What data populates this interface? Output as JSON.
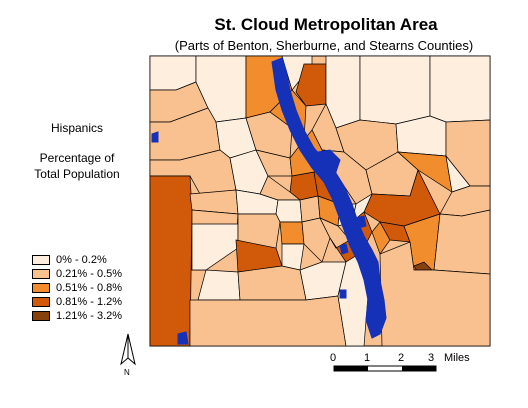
{
  "header": {
    "title": "St. Cloud Metropolitan Area",
    "subtitle": "(Parts of Benton, Sherburne, and Stearns Counties)"
  },
  "legend": {
    "subject": "Hispanics",
    "measure_line1": "Percentage of",
    "measure_line2": "Total Population",
    "classes": [
      {
        "label": "0% - 0.2%",
        "color": "#fdeede"
      },
      {
        "label": "0.21% - 0.5%",
        "color": "#f9c18f"
      },
      {
        "label": "0.51% - 0.8%",
        "color": "#f28d2d"
      },
      {
        "label": "0.81% - 1.2%",
        "color": "#d05a0a"
      },
      {
        "label": "1.21% - 3.2%",
        "color": "#86410d"
      }
    ]
  },
  "water_color": "#1431b8",
  "scale_bar": {
    "ticks": [
      "0",
      "1",
      "2",
      "3"
    ],
    "unit": "Miles"
  },
  "north_arrow": {
    "label": "N"
  }
}
